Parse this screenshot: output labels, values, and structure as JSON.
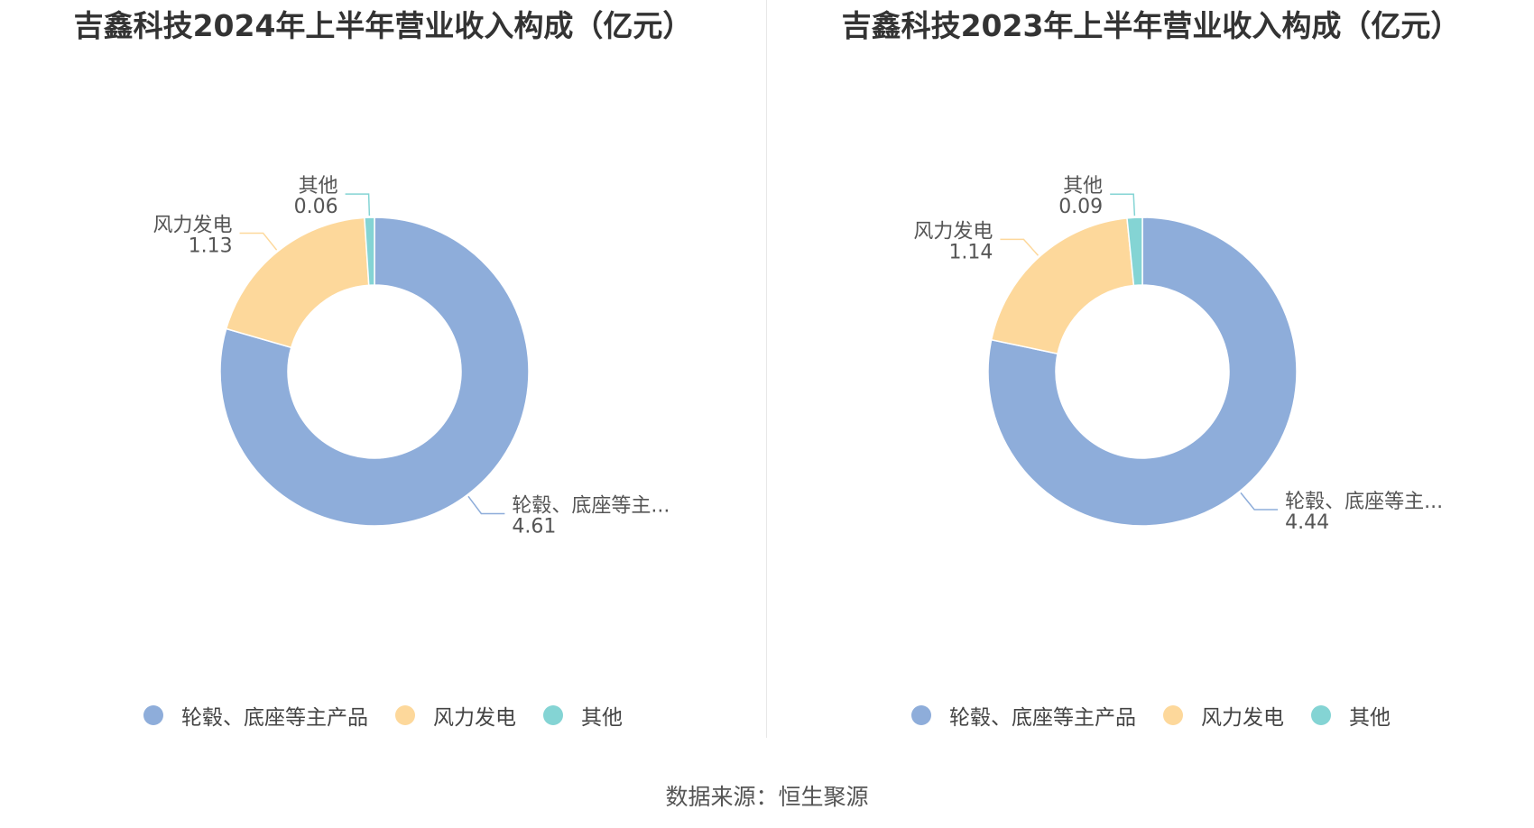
{
  "colors": {
    "main_products": "#8eadda",
    "wind_power": "#fdd89b",
    "other": "#84d4d4"
  },
  "chart_data": [
    {
      "type": "pie",
      "variant": "donut",
      "title": "吉鑫科技2024年上半年营业收入构成（亿元）",
      "slices": [
        {
          "name": "轮毂、底座等主产品",
          "label": "轮毂、底座等主...",
          "value": 4.61,
          "value_label": "4.61"
        },
        {
          "name": "风力发电",
          "label": "风力发电",
          "value": 1.13,
          "value_label": "1.13"
        },
        {
          "name": "其他",
          "label": "其他",
          "value": 0.06,
          "value_label": "0.06"
        }
      ],
      "legend": [
        "轮毂、底座等主产品",
        "风力发电",
        "其他"
      ],
      "legend_position": "bottom"
    },
    {
      "type": "pie",
      "variant": "donut",
      "title": "吉鑫科技2023年上半年营业收入构成（亿元）",
      "slices": [
        {
          "name": "轮毂、底座等主产品",
          "label": "轮毂、底座等主...",
          "value": 4.44,
          "value_label": "4.44"
        },
        {
          "name": "风力发电",
          "label": "风力发电",
          "value": 1.14,
          "value_label": "1.14"
        },
        {
          "name": "其他",
          "label": "其他",
          "value": 0.09,
          "value_label": "0.09"
        }
      ],
      "legend": [
        "轮毂、底座等主产品",
        "风力发电",
        "其他"
      ],
      "legend_position": "bottom"
    }
  ],
  "footer": {
    "source": "数据来源：恒生聚源"
  }
}
